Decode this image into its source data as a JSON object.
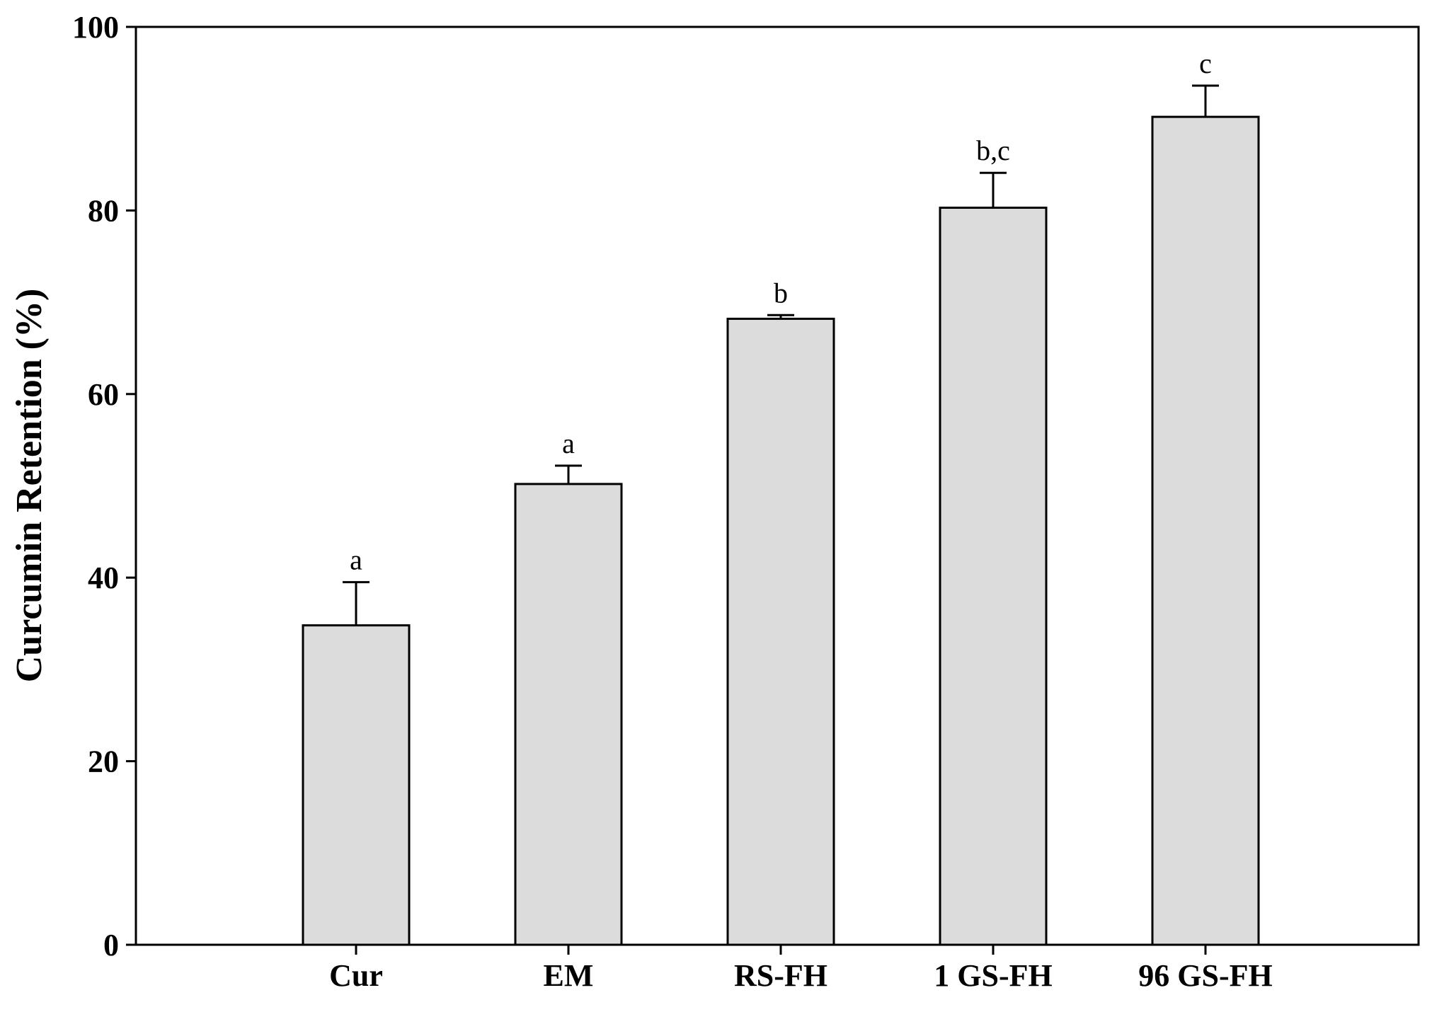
{
  "chart_data": {
    "type": "bar",
    "categories": [
      "Cur",
      "EM",
      "RS-FH",
      "1 GS-FH",
      "96 GS-FH"
    ],
    "series": [
      {
        "values": [
          34.8,
          50.2,
          68.2,
          80.3,
          90.2
        ],
        "errors": [
          4.7,
          2.0,
          0.4,
          3.8,
          3.4
        ],
        "significance": [
          "a",
          "a",
          "b",
          "b,c",
          "c"
        ]
      }
    ],
    "ylabel": "Curcumin Retention (%)",
    "xlabel": "",
    "ylim": [
      0,
      100
    ],
    "yticks": [
      0,
      20,
      40,
      60,
      80,
      100
    ],
    "grid": false,
    "bar_color": "#dcdcdc",
    "edge_color": "#000000"
  }
}
